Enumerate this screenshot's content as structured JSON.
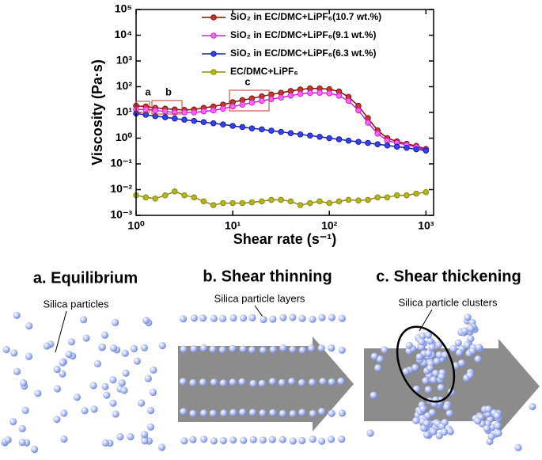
{
  "chart_data": {
    "type": "line",
    "x_label": "Shear rate (s⁻¹)",
    "y_label": "Viscosity (Pa·s)",
    "x_log": true,
    "y_log": true,
    "legend": "top-right",
    "xlim": [
      1,
      1200
    ],
    "ylim": [
      0.001,
      100000
    ],
    "xticks": [
      {
        "value": 1,
        "label": "10⁰"
      },
      {
        "value": 10,
        "label": "10¹"
      },
      {
        "value": 100,
        "label": "10²"
      },
      {
        "value": 1000,
        "label": "10³"
      }
    ],
    "yticks": [
      {
        "value": 0.001,
        "label": "10⁻³"
      },
      {
        "value": 0.01,
        "label": "10⁻²"
      },
      {
        "value": 0.1,
        "label": "10⁻¹"
      },
      {
        "value": 1,
        "label": "10⁰"
      },
      {
        "value": 10,
        "label": "10¹"
      },
      {
        "value": 100,
        "label": "10²"
      },
      {
        "value": 1000,
        "label": "10³"
      },
      {
        "value": 10000,
        "label": "10⁴"
      },
      {
        "value": 100000,
        "label": "10⁵"
      }
    ],
    "x": [
      1,
      1.26,
      1.58,
      2,
      2.51,
      3.16,
      3.98,
      5.01,
      6.31,
      7.94,
      10,
      12.6,
      15.8,
      20,
      25.1,
      31.6,
      39.8,
      50.1,
      63.1,
      79.4,
      100,
      126,
      158,
      200,
      251,
      316,
      398,
      501,
      631,
      794,
      1000
    ],
    "series": [
      {
        "name": "SiO₂ in EC/DMC+LiPF₆(10.7 wt.%)",
        "color": "#8b0a0a",
        "marker": "#c0392b",
        "values": [
          18,
          17,
          15,
          14,
          13,
          12.5,
          13,
          15,
          17,
          20,
          25,
          30,
          35,
          42,
          50,
          58,
          68,
          78,
          85,
          85,
          80,
          65,
          40,
          18,
          6,
          2,
          1,
          0.75,
          0.6,
          0.5,
          0.38
        ]
      },
      {
        "name": "SiO₂ in EC/DMC+LiPF₆(9.1 wt.%)",
        "color": "#cc22cc",
        "marker": "#ff66ff",
        "values": [
          13,
          13,
          12,
          11,
          10,
          10,
          10,
          11,
          12,
          14,
          17,
          20,
          24,
          28,
          33,
          38,
          45,
          52,
          57,
          58,
          55,
          45,
          28,
          12,
          4,
          1.5,
          0.8,
          0.65,
          0.55,
          0.45,
          0.35
        ]
      },
      {
        "name": "SiO₂ in EC/DMC+LiPF₆(6.3 wt.%)",
        "color": "#1a1aa8",
        "marker": "#3344ee",
        "values": [
          9,
          8.1,
          7.2,
          6.5,
          5.8,
          5.2,
          4.7,
          4.2,
          3.8,
          3.4,
          3.0,
          2.7,
          2.4,
          2.2,
          1.95,
          1.75,
          1.57,
          1.4,
          1.26,
          1.13,
          1.0,
          0.9,
          0.8,
          0.72,
          0.65,
          0.58,
          0.52,
          0.47,
          0.42,
          0.37,
          0.33
        ]
      },
      {
        "name": "EC/DMC+LiPF₆",
        "color": "#8a8a10",
        "marker": "#b5b520",
        "values": [
          0.006,
          0.005,
          0.0045,
          0.006,
          0.0085,
          0.006,
          0.005,
          0.0035,
          0.0025,
          0.003,
          0.003,
          0.003,
          0.0032,
          0.0035,
          0.004,
          0.004,
          0.0035,
          0.0025,
          0.003,
          0.0035,
          0.003,
          0.0035,
          0.004,
          0.0038,
          0.004,
          0.005,
          0.005,
          0.006,
          0.006,
          0.007,
          0.008
        ]
      }
    ],
    "annotations": [
      "a",
      "b",
      "c"
    ]
  },
  "schematic": {
    "panels": [
      {
        "title": "a. Equilibrium",
        "label": "Silica particles"
      },
      {
        "title": "b. Shear thinning",
        "label": "Silica particle layers"
      },
      {
        "title": "c. Shear thickening",
        "label": "Silica particle clusters"
      }
    ]
  }
}
